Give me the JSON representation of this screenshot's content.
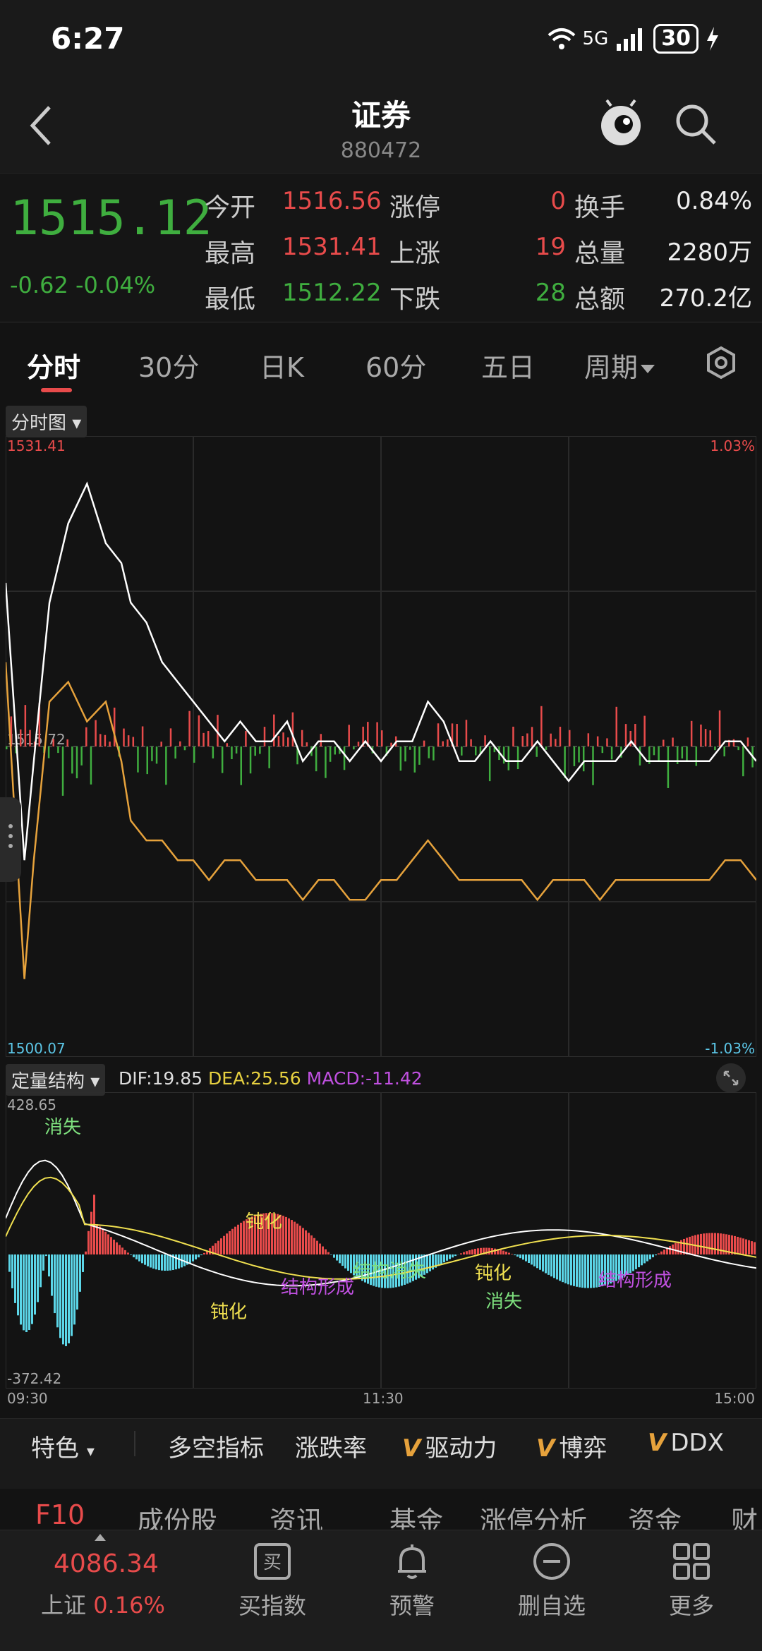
{
  "status": {
    "time": "6:27",
    "network": "5G",
    "battery": "30"
  },
  "header": {
    "title": "证券",
    "code": "880472"
  },
  "quote": {
    "price": "1515.12",
    "change": "-0.62",
    "change_pct": "-0.04%",
    "open_label": "今开",
    "open": "1516.56",
    "high_label": "最高",
    "high": "1531.41",
    "low_label": "最低",
    "low": "1512.22",
    "limit_up_label": "涨停",
    "limit_up": "0",
    "rise_label": "上涨",
    "rise": "19",
    "fall_label": "下跌",
    "fall": "28",
    "turnover_label": "换手",
    "turnover": "0.84%",
    "volume_label": "总量",
    "volume": "2280万",
    "amount_label": "总额",
    "amount": "270.2亿"
  },
  "tabs": [
    "分时",
    "30分",
    "日K",
    "60分",
    "五日",
    "周期"
  ],
  "chart_selector": "分时图",
  "indicator_selector": "定量结构",
  "colors": {
    "up": "#e84b4b",
    "down": "#3fae3f",
    "price_line": "#ffffff",
    "avg_line": "#e6a23c"
  },
  "chart_data": [
    {
      "type": "line",
      "y_top_label": "1531.41",
      "y_mid_label": "1515.72",
      "y_bottom_label": "1500.07",
      "pct_top_label": "1.03%",
      "pct_bottom_label": "-1.03%",
      "x_labels": [
        "09:30",
        "11:30",
        "15:00"
      ],
      "ylim": [
        1500.07,
        1531.41
      ],
      "series": [
        {
          "x": [
            0,
            3,
            6,
            9,
            14,
            20,
            26,
            32,
            37,
            40,
            45,
            50,
            55,
            60,
            65,
            70,
            75,
            80,
            85,
            90,
            95,
            100,
            105,
            110,
            115,
            120,
            125,
            130,
            135,
            140,
            145,
            150,
            155,
            160,
            165,
            170,
            175,
            180,
            185,
            190,
            195,
            200,
            205,
            210,
            215,
            220,
            225,
            230,
            235,
            240
          ],
          "values": [
            1524,
            1517,
            1510,
            1515,
            1523,
            1527,
            1529,
            1526,
            1525,
            1523,
            1522,
            1520,
            1519,
            1518,
            1517,
            1516,
            1517,
            1516,
            1516,
            1517,
            1515,
            1516,
            1516,
            1515,
            1516,
            1515,
            1516,
            1516,
            1518,
            1517,
            1515,
            1515,
            1516,
            1515,
            1515,
            1516,
            1515,
            1514,
            1515,
            1515,
            1515,
            1516,
            1515,
            1515,
            1515,
            1515,
            1515,
            1516,
            1516,
            1515
          ]
        },
        {
          "x": [
            0,
            3,
            6,
            9,
            14,
            20,
            26,
            32,
            37,
            40,
            45,
            50,
            55,
            60,
            65,
            70,
            75,
            80,
            85,
            90,
            95,
            100,
            105,
            110,
            115,
            120,
            125,
            130,
            135,
            140,
            145,
            150,
            155,
            160,
            165,
            170,
            175,
            180,
            185,
            190,
            195,
            200,
            205,
            210,
            215,
            220,
            225,
            230,
            235,
            240
          ],
          "values": [
            1520,
            1512,
            1504,
            1510,
            1518,
            1519,
            1517,
            1518,
            1515,
            1512,
            1511,
            1511,
            1510,
            1510,
            1509,
            1510,
            1510,
            1509,
            1509,
            1509,
            1508,
            1509,
            1509,
            1508,
            1508,
            1509,
            1509,
            1510,
            1511,
            1510,
            1509,
            1509,
            1509,
            1509,
            1509,
            1508,
            1509,
            1509,
            1509,
            1508,
            1509,
            1509,
            1509,
            1509,
            1509,
            1509,
            1509,
            1510,
            1510,
            1509
          ]
        }
      ]
    },
    {
      "type": "bar",
      "dif_label": "DIF:19.85",
      "dea_label": "DEA:25.56",
      "macd_label": "MACD:-11.42",
      "y_top_label": "428.65",
      "y_bottom_label": "-372.42",
      "ylim": [
        -372.42,
        428.65
      ],
      "annotations": [
        {
          "text": "消失",
          "color": "#7ee07e"
        },
        {
          "text": "钝化",
          "color": "#f0e050"
        },
        {
          "text": "结构形成",
          "color": "#c050e0"
        },
        {
          "text": "钝化",
          "color": "#f0e050"
        },
        {
          "text": "结构消失",
          "color": "#7ee07e"
        },
        {
          "text": "钝化",
          "color": "#f0e050"
        },
        {
          "text": "消失",
          "color": "#7ee07e"
        },
        {
          "text": "结构形成",
          "color": "#c050e0"
        }
      ]
    }
  ],
  "indicators": {
    "feature": "特色",
    "items": [
      "多空指标",
      "涨跌率",
      "驱动力",
      "博弈",
      "DDX"
    ]
  },
  "f10_tabs": [
    "F10",
    "成份股",
    "资讯",
    "基金",
    "涨停分析",
    "资金",
    "财"
  ],
  "footer": {
    "index_value": "4086.34",
    "index_name": "上证",
    "index_pct": "0.16%",
    "buttons": [
      "买指数",
      "预警",
      "删自选",
      "更多"
    ]
  }
}
